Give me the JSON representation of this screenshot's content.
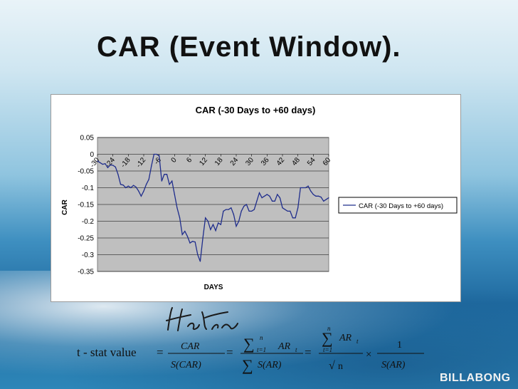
{
  "slide": {
    "title": "CAR (Event Window).",
    "brand": "BILLABONG"
  },
  "formula": {
    "lhs": "t - stat value",
    "eq": "=",
    "num1": "CAR",
    "den1": "S(CAR)",
    "num2": "AR",
    "den2": "S(AR)",
    "sum_upper": "n",
    "sum_lower": "t=1",
    "sub_t": "t",
    "sqrt_n": "n",
    "times": "×",
    "one": "1",
    "den3": "S(AR)"
  },
  "chart_data": {
    "type": "line",
    "title": "CAR (-30 Days to +60 days)",
    "xlabel": "DAYS",
    "ylabel": "CAR",
    "ylim": [
      -0.35,
      0.05
    ],
    "yticks": [
      "0.05",
      "0",
      "-0.05",
      "-0.1",
      "-0.15",
      "-0.2",
      "-0.25",
      "-0.3",
      "-0.35"
    ],
    "xticks": [
      "-30",
      "-24",
      "-18",
      "-12",
      "-6",
      "0",
      "6",
      "12",
      "18",
      "24",
      "30",
      "36",
      "42",
      "48",
      "54",
      "60"
    ],
    "xlim": [
      -30,
      60
    ],
    "grid": true,
    "legend_position": "right",
    "series": [
      {
        "name": "CAR (-30 Days to +60 days)",
        "color": "#1f2d8c",
        "x": [
          -30,
          -29,
          -28,
          -27,
          -26,
          -25,
          -24,
          -23,
          -22,
          -21,
          -20,
          -19,
          -18,
          -17,
          -16,
          -15,
          -14,
          -13,
          -12,
          -11,
          -10,
          -9,
          -8,
          -7,
          -6,
          -5,
          -4,
          -3,
          -2,
          -1,
          0,
          1,
          2,
          3,
          4,
          5,
          6,
          7,
          8,
          9,
          10,
          11,
          12,
          13,
          14,
          15,
          16,
          17,
          18,
          19,
          20,
          21,
          22,
          23,
          24,
          25,
          26,
          27,
          28,
          29,
          30,
          31,
          32,
          33,
          34,
          35,
          36,
          37,
          38,
          39,
          40,
          41,
          42,
          43,
          44,
          45,
          46,
          47,
          48,
          49,
          50,
          51,
          52,
          53,
          54,
          55,
          56,
          57,
          58,
          59,
          60
        ],
        "y": [
          -0.02,
          -0.025,
          -0.03,
          -0.028,
          -0.04,
          -0.032,
          -0.033,
          -0.038,
          -0.06,
          -0.09,
          -0.092,
          -0.1,
          -0.095,
          -0.1,
          -0.093,
          -0.098,
          -0.11,
          -0.125,
          -0.11,
          -0.09,
          -0.075,
          -0.035,
          0.0,
          0.0,
          -0.005,
          -0.08,
          -0.06,
          -0.06,
          -0.09,
          -0.08,
          -0.12,
          -0.16,
          -0.19,
          -0.24,
          -0.23,
          -0.245,
          -0.265,
          -0.26,
          -0.262,
          -0.3,
          -0.32,
          -0.25,
          -0.19,
          -0.2,
          -0.225,
          -0.21,
          -0.228,
          -0.205,
          -0.21,
          -0.17,
          -0.165,
          -0.165,
          -0.16,
          -0.18,
          -0.215,
          -0.2,
          -0.17,
          -0.155,
          -0.15,
          -0.17,
          -0.17,
          -0.165,
          -0.14,
          -0.115,
          -0.13,
          -0.125,
          -0.12,
          -0.125,
          -0.14,
          -0.14,
          -0.12,
          -0.13,
          -0.16,
          -0.165,
          -0.17,
          -0.17,
          -0.19,
          -0.19,
          -0.16,
          -0.1,
          -0.1,
          -0.1,
          -0.095,
          -0.11,
          -0.12,
          -0.125,
          -0.125,
          -0.128,
          -0.14,
          -0.135,
          -0.13
        ]
      }
    ]
  }
}
